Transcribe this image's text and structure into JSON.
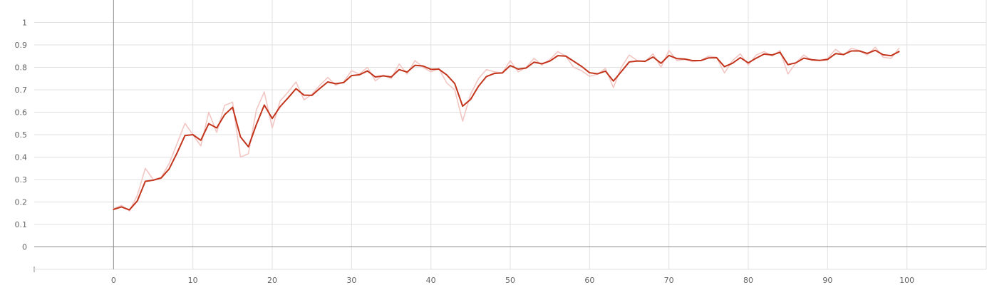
{
  "chart_data": {
    "type": "line",
    "title": "",
    "xlabel": "",
    "ylabel": "",
    "xlim": [
      -10,
      110
    ],
    "ylim": [
      -0.1,
      1.1
    ],
    "x_ticks": [
      0,
      10,
      20,
      30,
      40,
      50,
      60,
      70,
      80,
      90,
      100
    ],
    "y_ticks": [
      0,
      0.1,
      0.2,
      0.3,
      0.4,
      0.5,
      0.6,
      0.7,
      0.8,
      0.9,
      1
    ],
    "x_tick_labels": [
      "0",
      "10",
      "20",
      "30",
      "40",
      "50",
      "60",
      "70",
      "80",
      "90",
      "100"
    ],
    "y_tick_labels": [
      "0",
      "0.1",
      "0.2",
      "0.3",
      "0.4",
      "0.5",
      "0.6",
      "0.7",
      "0.8",
      "0.9",
      "1"
    ],
    "grid": true,
    "legend": "none",
    "colors": {
      "smoothed": "#c2351c",
      "raw": "#f2c6c3",
      "grid": "#e0e0e0",
      "axis": "#8a8a8a"
    },
    "series": [
      {
        "style": "raw",
        "x": [
          0,
          1,
          2,
          3,
          4,
          5,
          6,
          7,
          8,
          9,
          10,
          11,
          12,
          13,
          14,
          15,
          16,
          17,
          18,
          19,
          20,
          21,
          22,
          23,
          24,
          25,
          26,
          27,
          28,
          29,
          30,
          31,
          32,
          33,
          34,
          35,
          36,
          37,
          38,
          39,
          40,
          41,
          42,
          43,
          44,
          45,
          46,
          47,
          48,
          49,
          50,
          51,
          52,
          53,
          54,
          55,
          56,
          57,
          58,
          59,
          60,
          61,
          62,
          63,
          64,
          65,
          66,
          67,
          68,
          69,
          70,
          71,
          72,
          73,
          74,
          75,
          76,
          77,
          78,
          79,
          80,
          81,
          82,
          83,
          84,
          85,
          86,
          87,
          88,
          89,
          90,
          91,
          92,
          93,
          94,
          95,
          96,
          97,
          98,
          99
        ],
        "y": [
          0.17,
          0.185,
          0.16,
          0.23,
          0.35,
          0.3,
          0.31,
          0.37,
          0.46,
          0.55,
          0.5,
          0.45,
          0.6,
          0.51,
          0.63,
          0.645,
          0.4,
          0.415,
          0.61,
          0.69,
          0.53,
          0.65,
          0.69,
          0.735,
          0.655,
          0.68,
          0.72,
          0.755,
          0.72,
          0.735,
          0.785,
          0.77,
          0.8,
          0.74,
          0.765,
          0.75,
          0.815,
          0.77,
          0.83,
          0.8,
          0.78,
          0.795,
          0.73,
          0.7,
          0.56,
          0.68,
          0.75,
          0.79,
          0.78,
          0.775,
          0.83,
          0.78,
          0.8,
          0.84,
          0.81,
          0.835,
          0.87,
          0.85,
          0.8,
          0.785,
          0.76,
          0.77,
          0.795,
          0.71,
          0.8,
          0.855,
          0.83,
          0.825,
          0.86,
          0.8,
          0.875,
          0.83,
          0.835,
          0.825,
          0.83,
          0.85,
          0.845,
          0.775,
          0.83,
          0.86,
          0.81,
          0.855,
          0.87,
          0.85,
          0.875,
          0.77,
          0.82,
          0.855,
          0.83,
          0.83,
          0.84,
          0.88,
          0.855,
          0.885,
          0.875,
          0.855,
          0.89,
          0.845,
          0.84,
          0.885
        ]
      },
      {
        "style": "smoothed",
        "x": [
          0,
          1,
          2,
          3,
          4,
          5,
          6,
          7,
          8,
          9,
          10,
          11,
          12,
          13,
          14,
          15,
          16,
          17,
          18,
          19,
          20,
          21,
          22,
          23,
          24,
          25,
          26,
          27,
          28,
          29,
          30,
          31,
          32,
          33,
          34,
          35,
          36,
          37,
          38,
          39,
          40,
          41,
          42,
          43,
          44,
          45,
          46,
          47,
          48,
          49,
          50,
          51,
          52,
          53,
          54,
          55,
          56,
          57,
          58,
          59,
          60,
          61,
          62,
          63,
          64,
          65,
          66,
          67,
          68,
          69,
          70,
          71,
          72,
          73,
          74,
          75,
          76,
          77,
          78,
          79,
          80,
          81,
          82,
          83,
          84,
          85,
          86,
          87,
          88,
          89,
          90,
          91,
          92,
          93,
          94,
          95,
          96,
          97,
          98,
          99
        ],
        "y": [
          0.167,
          0.178,
          0.165,
          0.205,
          0.292,
          0.297,
          0.307,
          0.347,
          0.418,
          0.496,
          0.5,
          0.475,
          0.549,
          0.53,
          0.589,
          0.622,
          0.49,
          0.446,
          0.545,
          0.632,
          0.572,
          0.625,
          0.664,
          0.705,
          0.676,
          0.675,
          0.706,
          0.735,
          0.727,
          0.732,
          0.763,
          0.767,
          0.784,
          0.757,
          0.762,
          0.757,
          0.79,
          0.779,
          0.809,
          0.806,
          0.791,
          0.792,
          0.766,
          0.728,
          0.627,
          0.657,
          0.716,
          0.759,
          0.773,
          0.775,
          0.808,
          0.792,
          0.797,
          0.823,
          0.816,
          0.828,
          0.852,
          0.85,
          0.827,
          0.804,
          0.776,
          0.771,
          0.783,
          0.739,
          0.781,
          0.824,
          0.828,
          0.827,
          0.846,
          0.818,
          0.853,
          0.839,
          0.837,
          0.83,
          0.83,
          0.842,
          0.843,
          0.803,
          0.818,
          0.843,
          0.82,
          0.841,
          0.859,
          0.855,
          0.867,
          0.812,
          0.82,
          0.841,
          0.834,
          0.831,
          0.835,
          0.861,
          0.857,
          0.873,
          0.873,
          0.862,
          0.876,
          0.856,
          0.852,
          0.87
        ]
      }
    ]
  }
}
